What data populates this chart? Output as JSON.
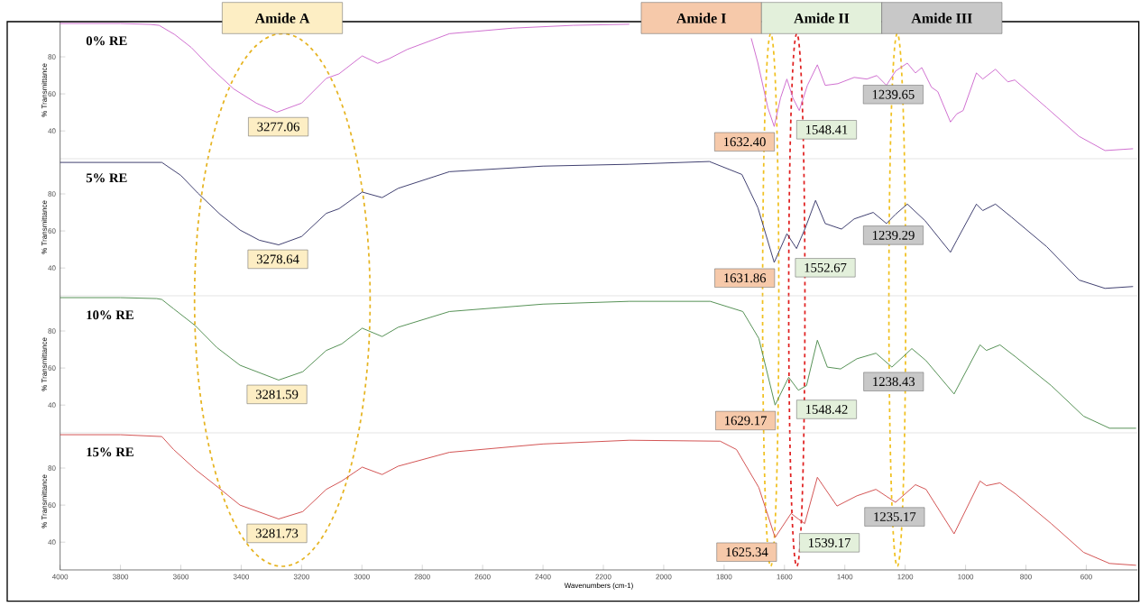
{
  "chart_data": [
    {
      "type": "line",
      "xlim": [
        4000,
        430
      ],
      "ylim": [
        25,
        99
      ],
      "yticks": [
        40,
        60,
        80
      ],
      "tick_labels": "y",
      "ylabel": "% Transmittance",
      "x": [
        4000,
        3800,
        3700,
        3672,
        3620,
        3565,
        3500,
        3425,
        3350,
        3282,
        3200,
        3118,
        3076,
        2999,
        2948,
        2910,
        2850,
        2710,
        2500,
        2300,
        2114,
        1900,
        1750,
        1710,
        1688,
        1655,
        1634,
        1613,
        1592,
        1572,
        1551,
        1524,
        1491,
        1465,
        1423,
        1369,
        1327,
        1294,
        1262,
        1232,
        1193,
        1166,
        1145,
        1113,
        1092,
        1050,
        1029,
        1008,
        964,
        943,
        901,
        860,
        837,
        731,
        624,
        538,
        445
      ],
      "series": [
        {
          "name": "0% RE",
          "color": "#cc66cc",
          "values": [
            98,
            98,
            97.5,
            97,
            92,
            85,
            74,
            62.7,
            55,
            50.1,
            55,
            68.4,
            70.8,
            80.5,
            76.5,
            79,
            84,
            92.5,
            95.5,
            97,
            97.6,
            null,
            null,
            90,
            76.6,
            52.5,
            42.4,
            57.8,
            68,
            57.8,
            51,
            64.6,
            75.7,
            64.6,
            65.5,
            68.9,
            68,
            69.9,
            64.6,
            72.3,
            76.6,
            71.3,
            74.2,
            63.6,
            61.2,
            44.8,
            49.2,
            51,
            71.3,
            68,
            73.3,
            66.5,
            67.5,
            52.5,
            37.1,
            29.4,
            30.4
          ]
        }
      ],
      "annotations": [
        "Amide A",
        "Amide I",
        "Amide II",
        "Amide III",
        {
          "text": "3277.06",
          "x": 3277.06,
          "y": 50
        },
        {
          "text": "1632.40",
          "x": 1632.4,
          "y": 42.5
        },
        {
          "text": "1548.41",
          "x": 1548.41,
          "y": 51
        },
        {
          "text": "1239.65",
          "x": 1239.65,
          "y": 70
        }
      ]
    },
    {
      "type": "line",
      "xlim": [
        4000,
        430
      ],
      "ylim": [
        25,
        99
      ],
      "yticks": [
        40,
        60,
        80
      ],
      "tick_labels": "y",
      "ylabel": "% Transmittance",
      "x": [
        4000,
        3800,
        3663,
        3600,
        3544,
        3470,
        3404,
        3340,
        3276,
        3200,
        3118,
        3076,
        2999,
        2933,
        2880,
        2710,
        2400,
        2114,
        1849,
        1741,
        1688,
        1634,
        1592,
        1560,
        1530,
        1497,
        1465,
        1411,
        1369,
        1306,
        1262,
        1232,
        1193,
        1134,
        1050,
        1029,
        964,
        943,
        901,
        848,
        731,
        624,
        538,
        445
      ],
      "series": [
        {
          "name": "5% RE",
          "color": "#333366",
          "values": [
            97,
            97,
            97,
            90,
            80.5,
            69,
            60.5,
            55,
            52.5,
            57,
            69.5,
            72,
            81,
            78,
            83,
            92,
            95,
            96,
            97.5,
            90.5,
            72.5,
            43,
            58.5,
            50.5,
            62,
            76.5,
            64,
            61,
            66.5,
            70,
            64,
            69,
            74.5,
            65.5,
            48.5,
            55,
            74.5,
            71,
            74.5,
            67.5,
            51.5,
            33.5,
            29,
            30
          ]
        }
      ],
      "annotations": [
        {
          "text": "3278.64",
          "x": 3278.64,
          "y": 52.5
        },
        {
          "text": "1631.86",
          "x": 1631.86,
          "y": 43
        },
        {
          "text": "1552.67",
          "x": 1552.67,
          "y": 50.5
        },
        {
          "text": "1239.29",
          "x": 1239.29,
          "y": 68
        }
      ]
    },
    {
      "type": "line",
      "xlim": [
        4000,
        430
      ],
      "ylim": [
        25,
        99
      ],
      "yticks": [
        40,
        60,
        80
      ],
      "tick_labels": "y",
      "ylabel": "% Transmittance",
      "x": [
        4000,
        3800,
        3680,
        3663,
        3624,
        3553,
        3480,
        3404,
        3276,
        3196,
        3118,
        3067,
        2999,
        2933,
        2880,
        2710,
        2400,
        2114,
        1846,
        1738,
        1685,
        1631,
        1586,
        1554,
        1527,
        1491,
        1458,
        1414,
        1360,
        1297,
        1244,
        1178,
        1131,
        1038,
        1017,
        952,
        931,
        886,
        834,
        716,
        609,
        523,
        435
      ],
      "series": [
        {
          "name": "10% RE",
          "color": "#4a8a4a",
          "values": [
            98,
            98,
            97.5,
            97,
            92,
            83,
            71,
            61.5,
            53.5,
            58,
            69.5,
            73,
            81.5,
            77,
            82,
            90.5,
            94.5,
            96,
            96,
            90.5,
            76,
            40,
            55,
            48,
            50.5,
            75,
            60.5,
            59.5,
            65,
            68,
            60.5,
            70.5,
            64,
            46,
            52.5,
            72.5,
            69.5,
            72.5,
            66,
            50.5,
            34,
            27.5,
            27.5
          ]
        }
      ],
      "annotations": [
        {
          "text": "3281.59",
          "x": 3281.59,
          "y": 53.5
        },
        {
          "text": "1629.17",
          "x": 1629.17,
          "y": 40
        },
        {
          "text": "1548.42",
          "x": 1548.42,
          "y": 48
        },
        {
          "text": "1238.43",
          "x": 1238.43,
          "y": 63
        }
      ]
    },
    {
      "type": "line",
      "xlim": [
        4000,
        430
      ],
      "ylim": [
        25,
        99
      ],
      "yticks": [
        40,
        60,
        80
      ],
      "ylabel": "% Transmittance",
      "xlabel": "Wavenumbers (cm-1)",
      "xticks": [
        4000,
        3800,
        3600,
        3400,
        3200,
        3000,
        2800,
        2600,
        2400,
        2200,
        2000,
        1800,
        1600,
        1400,
        1200,
        1000,
        800,
        600
      ],
      "x": [
        4000,
        3800,
        3663,
        3624,
        3550,
        3476,
        3404,
        3276,
        3196,
        3118,
        3067,
        2999,
        2933,
        2880,
        2710,
        2400,
        2114,
        1813,
        1759,
        1685,
        1631,
        1578,
        1554,
        1533,
        1491,
        1426,
        1360,
        1297,
        1232,
        1166,
        1131,
        1038,
        952,
        931,
        886,
        834,
        716,
        609,
        523,
        435
      ],
      "series": [
        {
          "name": "15% RE",
          "color": "#d04848",
          "values": [
            98,
            98,
            97,
            90,
            79,
            69.5,
            60,
            52.5,
            56.5,
            68.5,
            73,
            80.5,
            76.5,
            81,
            88.5,
            93,
            95,
            94.5,
            90,
            69.5,
            42.5,
            55.5,
            52.5,
            50,
            75,
            59.5,
            65,
            68.5,
            61.5,
            71,
            68.5,
            44.5,
            73,
            70.5,
            72,
            66,
            50,
            34.5,
            28.5,
            27.5
          ]
        }
      ],
      "annotations": [
        {
          "text": "3281.73",
          "x": 3281.73,
          "y": 52.5
        },
        {
          "text": "1625.34",
          "x": 1625.34,
          "y": 43
        },
        {
          "text": "1539.17",
          "x": 1539.17,
          "y": 50
        },
        {
          "text": "1235.17",
          "x": 1235.17,
          "y": 64
        }
      ]
    }
  ]
}
